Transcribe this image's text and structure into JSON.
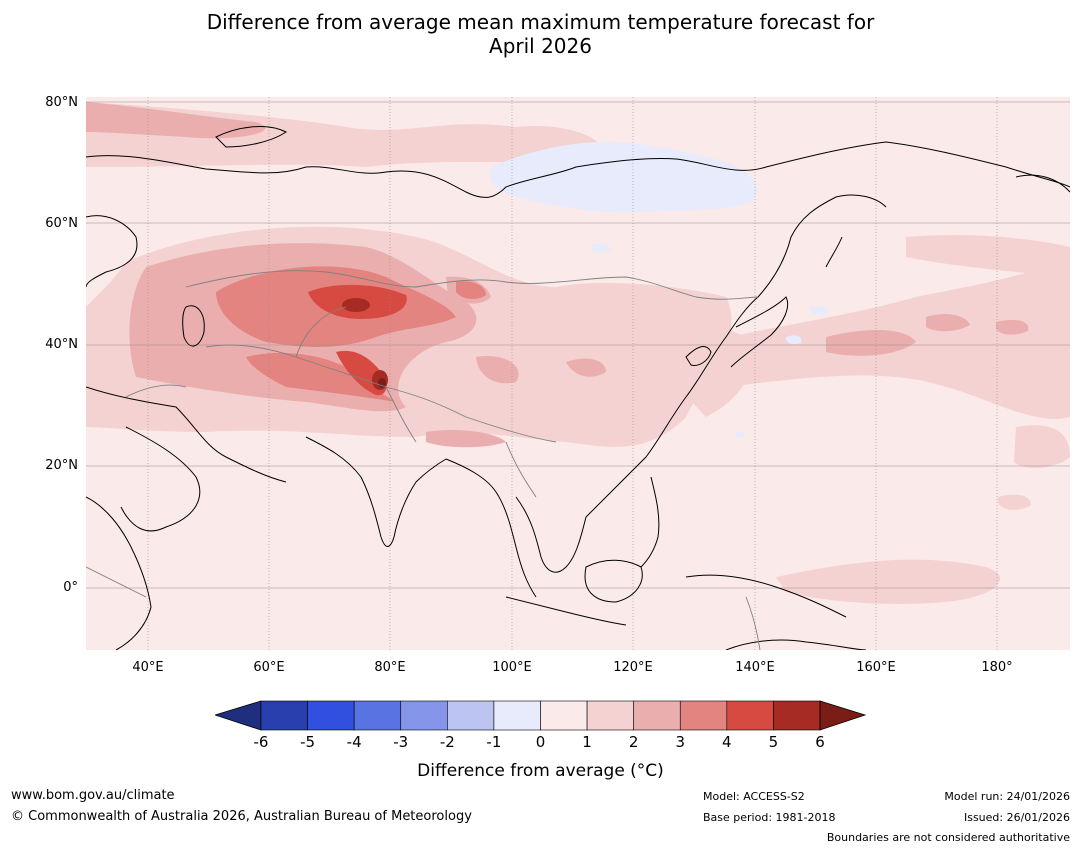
{
  "title": {
    "line1": "Difference from average mean maximum temperature forecast for",
    "line2": "April 2026"
  },
  "map": {
    "lat_labels": [
      "80°N",
      "60°N",
      "40°N",
      "20°N",
      "0°"
    ],
    "lon_labels": [
      "40°E",
      "60°E",
      "80°E",
      "100°E",
      "120°E",
      "140°E",
      "160°E",
      "180°"
    ],
    "extent": {
      "lon_min": 30,
      "lon_max": 192,
      "lat_min": -10,
      "lat_max": 80
    }
  },
  "colorbar": {
    "ticks": [
      "-6",
      "-5",
      "-4",
      "-3",
      "-2",
      "-1",
      "0",
      "1",
      "2",
      "3",
      "4",
      "5",
      "6"
    ],
    "colors": [
      "#2a3fae",
      "#3250e0",
      "#5a73e3",
      "#8596ea",
      "#bcc4f2",
      "#e8ebfb",
      "#fbeaea",
      "#f4d2d2",
      "#ebaeae",
      "#e48480",
      "#d64a42",
      "#a52b24"
    ],
    "under_color": "#1f2f7e",
    "over_color": "#7a1d17",
    "label": "Difference from average (°C)"
  },
  "footer": {
    "website": "www.bom.gov.au/climate",
    "copyright": "© Commonwealth of Australia 2026, Australian Bureau of Meteorology",
    "model": "Model: ACCESS-S2",
    "base_period": "Base period: 1981-2018",
    "model_run": "Model run: 24/01/2026",
    "issued": "Issued: 26/01/2026",
    "disclaimer": "Boundaries are not considered authoritative"
  }
}
